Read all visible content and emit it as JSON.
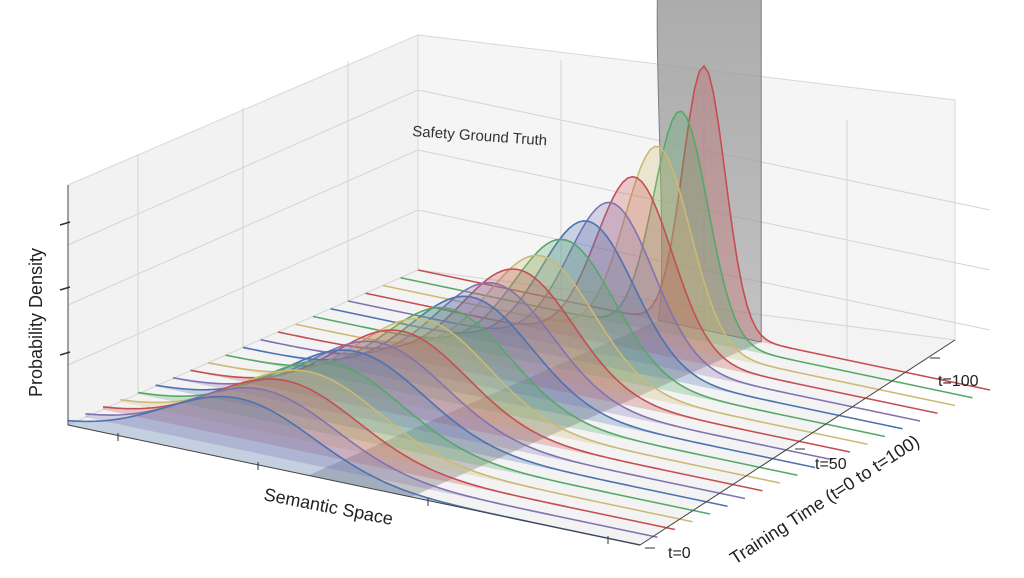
{
  "chart_data": {
    "type": "area",
    "title": "",
    "xlabel": "Semantic Space",
    "ylabel": "Training Time (t=0 to t=100)",
    "zlabel": "Probability Density",
    "y_ticks": [
      "t=0",
      "t=50",
      "t=100"
    ],
    "annotation": "Safety Ground Truth",
    "grid": true,
    "colors": {
      "ground_truth": "#9e9e9e",
      "cycle": [
        "#4c72b0",
        "#8172b2",
        "#c44e52",
        "#ccb974",
        "#55a868"
      ],
      "last": "#c44e52"
    },
    "series_note_free": true,
    "series": [
      {
        "t": 0,
        "mean": 0.3,
        "sd": 0.13,
        "peak": 0.26
      },
      {
        "t": 5,
        "mean": 0.31,
        "sd": 0.128,
        "peak": 0.27
      },
      {
        "t": 10,
        "mean": 0.32,
        "sd": 0.126,
        "peak": 0.28
      },
      {
        "t": 15,
        "mean": 0.33,
        "sd": 0.124,
        "peak": 0.29
      },
      {
        "t": 20,
        "mean": 0.34,
        "sd": 0.122,
        "peak": 0.3
      },
      {
        "t": 25,
        "mean": 0.35,
        "sd": 0.12,
        "peak": 0.32
      },
      {
        "t": 30,
        "mean": 0.36,
        "sd": 0.117,
        "peak": 0.33
      },
      {
        "t": 35,
        "mean": 0.37,
        "sd": 0.114,
        "peak": 0.35
      },
      {
        "t": 40,
        "mean": 0.38,
        "sd": 0.111,
        "peak": 0.37
      },
      {
        "t": 45,
        "mean": 0.39,
        "sd": 0.108,
        "peak": 0.39
      },
      {
        "t": 50,
        "mean": 0.4,
        "sd": 0.105,
        "peak": 0.41
      },
      {
        "t": 55,
        "mean": 0.41,
        "sd": 0.101,
        "peak": 0.44
      },
      {
        "t": 60,
        "mean": 0.42,
        "sd": 0.097,
        "peak": 0.47
      },
      {
        "t": 65,
        "mean": 0.43,
        "sd": 0.092,
        "peak": 0.5
      },
      {
        "t": 70,
        "mean": 0.44,
        "sd": 0.087,
        "peak": 0.54
      },
      {
        "t": 75,
        "mean": 0.45,
        "sd": 0.081,
        "peak": 0.59
      },
      {
        "t": 80,
        "mean": 0.46,
        "sd": 0.074,
        "peak": 0.64
      },
      {
        "t": 85,
        "mean": 0.47,
        "sd": 0.066,
        "peak": 0.72
      },
      {
        "t": 90,
        "mean": 0.48,
        "sd": 0.057,
        "peak": 0.82
      },
      {
        "t": 95,
        "mean": 0.49,
        "sd": 0.047,
        "peak": 0.94
      },
      {
        "t": 100,
        "mean": 0.5,
        "sd": 0.037,
        "peak": 1.1
      }
    ],
    "ground_truth": {
      "x_left": 0.42,
      "x_right": 0.6,
      "height": 1.45
    }
  }
}
